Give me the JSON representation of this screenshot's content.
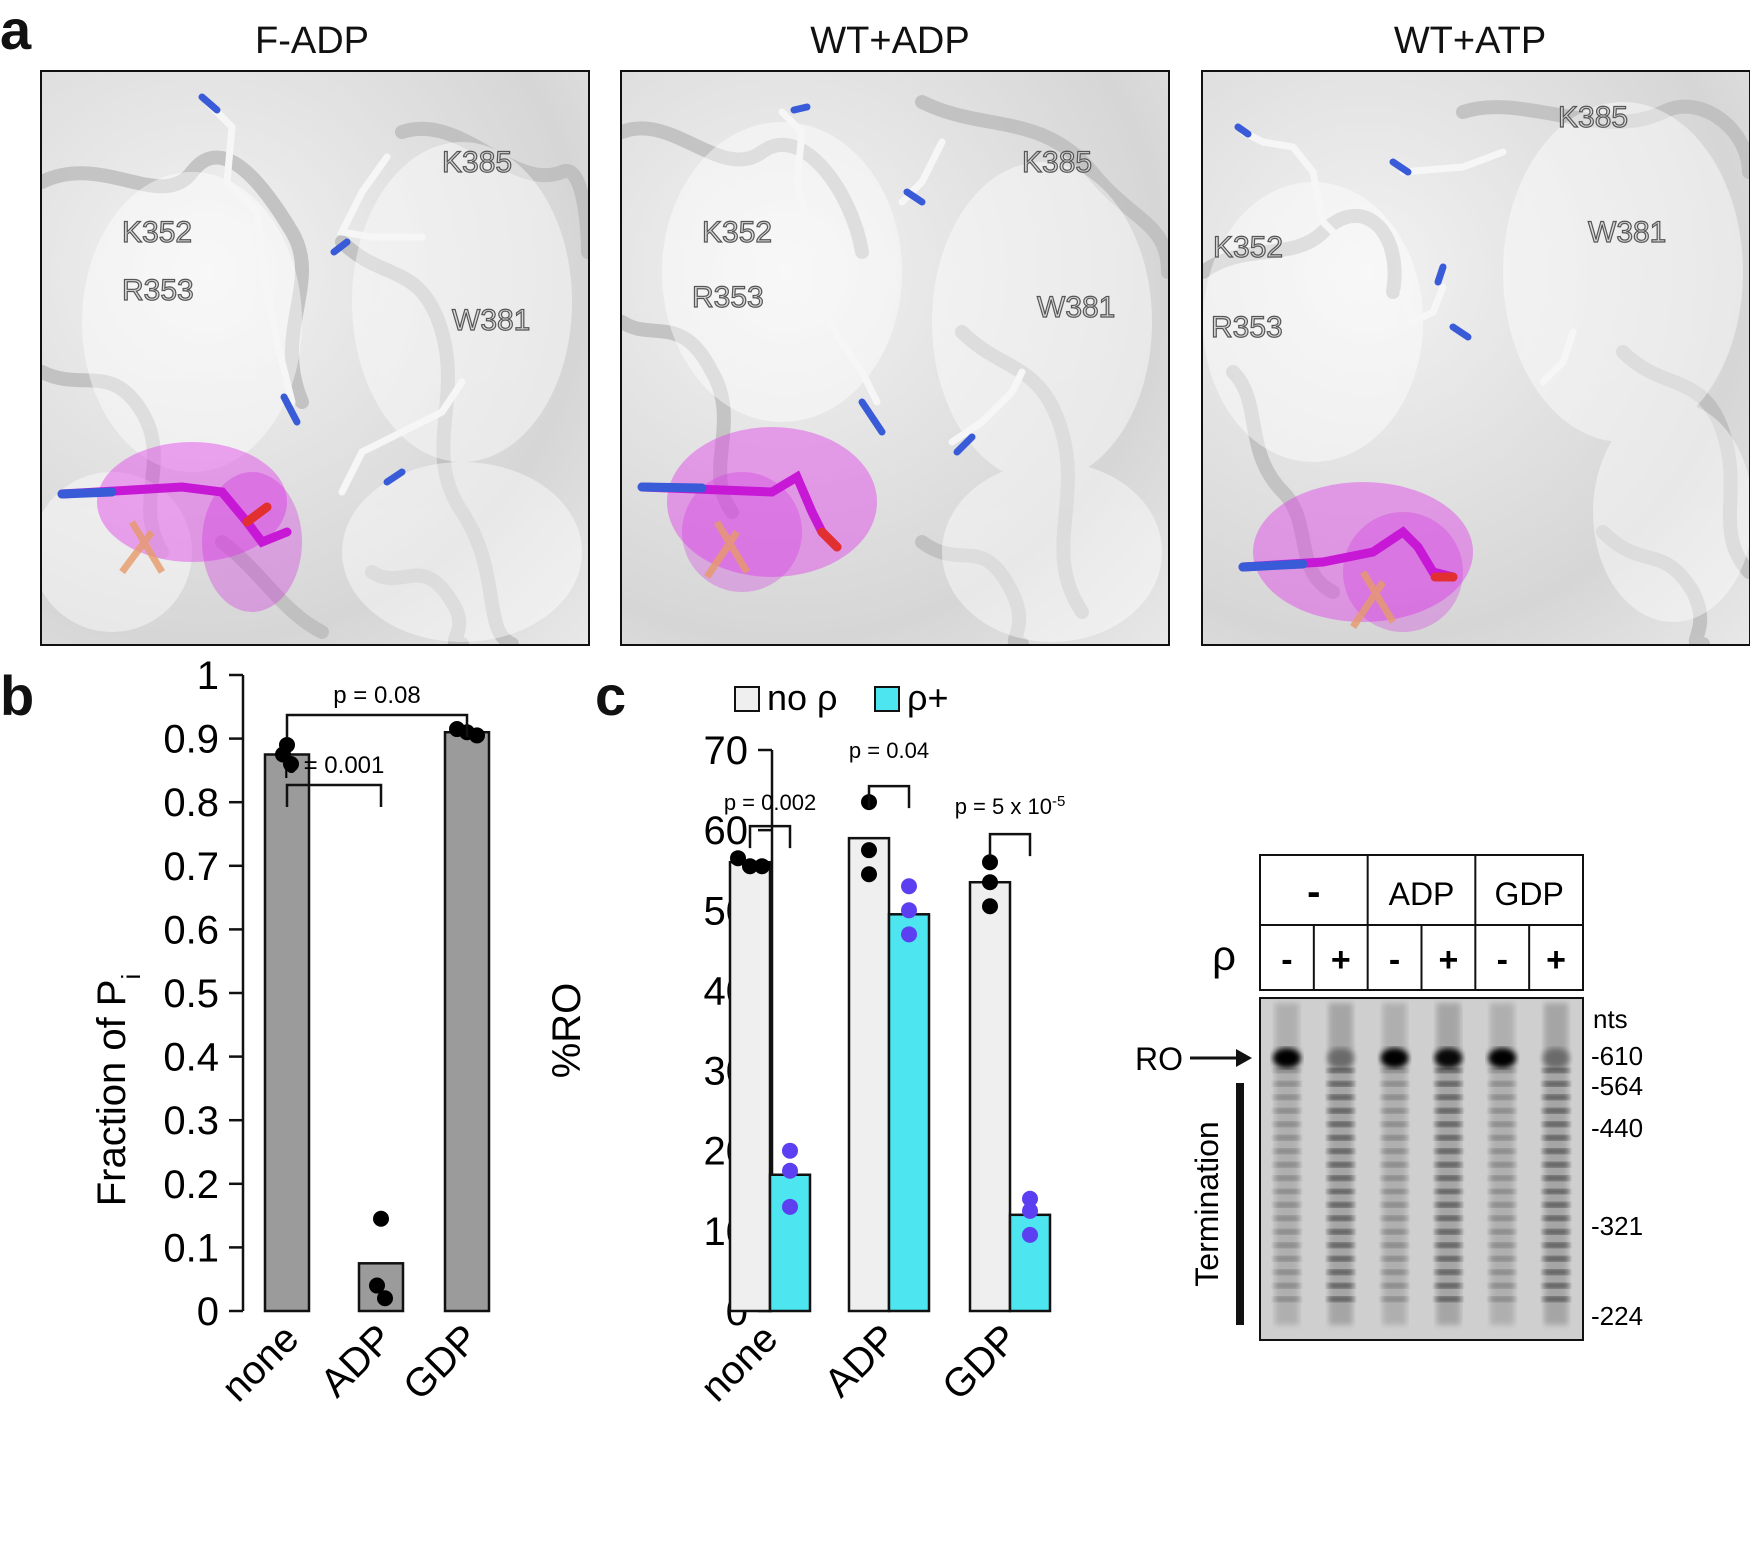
{
  "panel_a": {
    "letter": "a",
    "panels": [
      {
        "title": "F-ADP",
        "labels": {
          "k385": "K385",
          "k352": "K352",
          "r353": "R353",
          "w381": "W381"
        }
      },
      {
        "title": "WT+ADP",
        "labels": {
          "k385": "K385",
          "k352": "K352",
          "r353": "R353",
          "w381": "W381"
        }
      },
      {
        "title": "WT+ATP",
        "labels": {
          "k385": "K385",
          "k352": "K352",
          "r353": "R353",
          "w381": "W381"
        }
      }
    ]
  },
  "panel_b": {
    "letter": "b"
  },
  "panel_c": {
    "letter": "c"
  },
  "chart_data": [
    {
      "type": "bar",
      "ylabel_main": "Fraction of P",
      "ylabel_sub": "i",
      "categories": [
        "none",
        "ADP",
        "GDP"
      ],
      "values": [
        0.875,
        0.075,
        0.91
      ],
      "points": [
        [
          0.89,
          0.875,
          0.86
        ],
        [
          0.145,
          0.04,
          0.02
        ],
        [
          0.915,
          0.91,
          0.905
        ]
      ],
      "ylim": [
        0,
        1
      ],
      "yticks": [
        "0",
        "0.1",
        "0.2",
        "0.3",
        "0.4",
        "0.5",
        "0.6",
        "0.7",
        "0.8",
        "0.9",
        "1"
      ],
      "bar_color": "#9b9b9b",
      "significance": [
        {
          "from": "none",
          "to": "ADP",
          "label": "p = 0.001"
        },
        {
          "from": "none",
          "to": "GDP",
          "label": "p = 0.08"
        }
      ]
    },
    {
      "type": "bar",
      "ylabel": "%RO",
      "categories": [
        "none",
        "ADP",
        "GDP"
      ],
      "ylim": [
        0,
        70
      ],
      "yticks": [
        "0",
        "10",
        "20",
        "30",
        "40",
        "50",
        "60",
        "70"
      ],
      "series": [
        {
          "name": "no ρ",
          "color": "#efefef",
          "values": [
            56,
            59,
            53.5
          ],
          "points": [
            [
              56.5,
              55.5,
              55.5
            ],
            [
              63.5,
              57.5,
              54.5
            ],
            [
              56,
              53.5,
              50.5
            ]
          ],
          "point_color": "#000000"
        },
        {
          "name": "ρ+",
          "color": "#4de6f0",
          "values": [
            17,
            49.5,
            12
          ],
          "points": [
            [
              20,
              17.5,
              13
            ],
            [
              53,
              50,
              47
            ],
            [
              14,
              12.5,
              9.5
            ]
          ],
          "point_color": "#5b3ff0"
        }
      ],
      "significance": [
        {
          "label": "p = 0.002"
        },
        {
          "label": "p = 0.04"
        },
        {
          "label": "p = 5 x 10",
          "sup": "-5"
        }
      ]
    }
  ],
  "gel": {
    "header_groups": [
      "-",
      "ADP",
      "GDP"
    ],
    "rho_label": "ρ",
    "rho_values": [
      "-",
      "+",
      "-",
      "+",
      "-",
      "+"
    ],
    "nts_label": "nts",
    "markers": [
      "-610",
      "-564",
      "-440",
      "-321",
      "-224"
    ],
    "ro_label": "RO",
    "termination_label": "Termination"
  }
}
